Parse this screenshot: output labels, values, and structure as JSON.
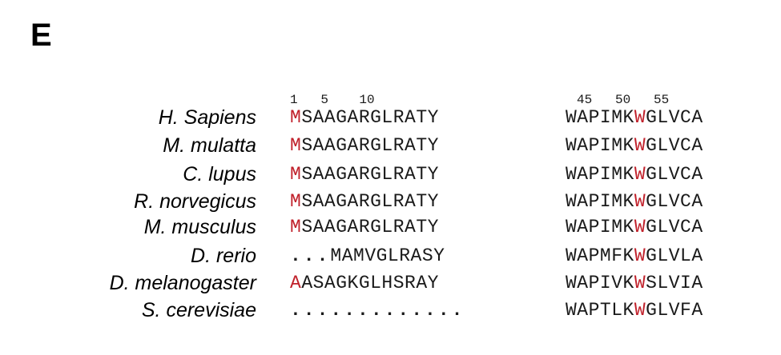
{
  "panel_label": "E",
  "position_numbers": {
    "left": "1   5    10",
    "right": "45   50   55"
  },
  "highlight_color": "#c0202a",
  "rows": [
    {
      "species": "H. Sapiens",
      "left": {
        "pre": "",
        "hl": "M",
        "post": "SAAGARGLRATY"
      },
      "right": {
        "pre": "WAPIMK",
        "hl": "W",
        "post": "GLVCA"
      }
    },
    {
      "species": "M. mulatta",
      "left": {
        "pre": "",
        "hl": "M",
        "post": "SAAGARGLRATY"
      },
      "right": {
        "pre": "WAPIMK",
        "hl": "W",
        "post": "GLVCA"
      }
    },
    {
      "species": "C. lupus",
      "left": {
        "pre": "",
        "hl": "M",
        "post": "SAAGARGLRATY"
      },
      "right": {
        "pre": "WAPIMK",
        "hl": "W",
        "post": "GLVCA"
      }
    },
    {
      "species": "R. norvegicus",
      "left": {
        "pre": "",
        "hl": "M",
        "post": "SAAGARGLRATY"
      },
      "right": {
        "pre": "WAPIMK",
        "hl": "W",
        "post": "GLVCA"
      }
    },
    {
      "species": "M. musculus",
      "left": {
        "pre": "",
        "hl": "M",
        "post": "SAAGARGLRATY"
      },
      "right": {
        "pre": "WAPIMK",
        "hl": "W",
        "post": "GLVCA"
      }
    },
    {
      "species": "D. rerio",
      "left": {
        "pre": "...",
        "hl": "",
        "post": "MAMVGLRASY"
      },
      "right": {
        "pre": "WAPMFK",
        "hl": "W",
        "post": "GLVLA"
      }
    },
    {
      "species": "D. melanogaster",
      "left": {
        "pre": "",
        "hl": "A",
        "post": "ASAGKGLHSRAY"
      },
      "right": {
        "pre": "WAPIVK",
        "hl": "W",
        "post": "SLVIA"
      }
    },
    {
      "species": "S. cerevisiae",
      "left": {
        "pre": ".............",
        "hl": "",
        "post": ""
      },
      "right": {
        "pre": "WAPTLK",
        "hl": "W",
        "post": "GLVFA"
      }
    }
  ]
}
